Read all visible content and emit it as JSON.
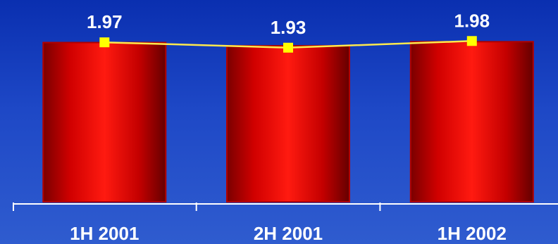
{
  "chart_data": {
    "type": "bar",
    "categories": [
      "1H 2001",
      "2H 2001",
      "1H 2002"
    ],
    "values": [
      1.97,
      1.93,
      1.98
    ],
    "series": [
      {
        "values": [
          1.97,
          1.93,
          1.98
        ]
      }
    ],
    "data_labels": [
      "1.97",
      "1.93",
      "1.98"
    ],
    "title": "",
    "xlabel": "",
    "ylabel": "",
    "overlay_line": true,
    "grid": false,
    "legend": "none",
    "colors": {
      "bar_fill": "#ff0000",
      "bar_edge": "#8b0000",
      "line": "#ffe94d",
      "marker": "#ffff00",
      "text": "#ffffff",
      "axis": "#ffffff"
    }
  }
}
